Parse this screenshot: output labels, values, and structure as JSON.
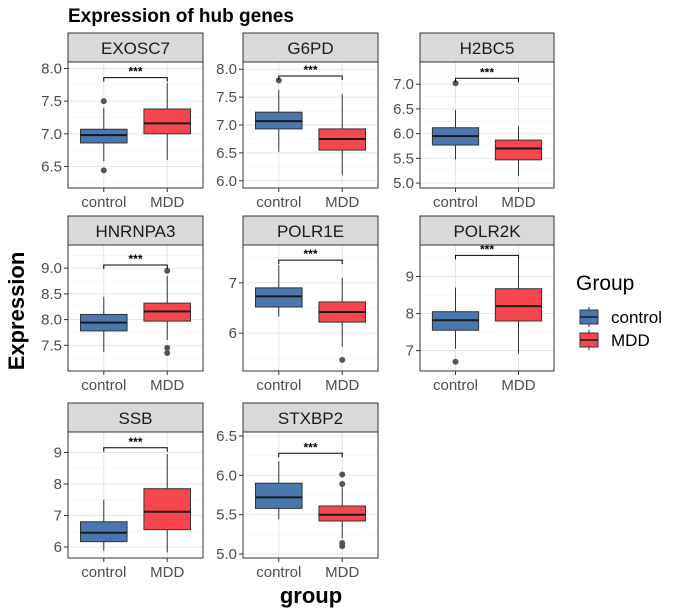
{
  "chart_data": {
    "type": "boxplot",
    "title": "Expression of hub genes",
    "xlabel": "group",
    "ylabel": "Expression",
    "categories": [
      "control",
      "MDD"
    ],
    "legend": {
      "title": "Group",
      "position": "right",
      "entries": [
        {
          "name": "control",
          "color": "#4A78AE"
        },
        {
          "name": "MDD",
          "color": "#F5474D"
        }
      ]
    },
    "grid": true,
    "panels": [
      {
        "gene": "EXOSC7",
        "yticks": [
          6.5,
          7.0,
          7.5,
          8.0
        ],
        "ylim": [
          6.17,
          8.1
        ],
        "significance": "***",
        "sig_y": 7.86,
        "boxes": [
          {
            "group": "control",
            "lower_whisker": 6.58,
            "q1": 6.86,
            "median": 6.98,
            "q3": 7.07,
            "upper_whisker": 7.4,
            "outliers": [
              7.5,
              6.44
            ]
          },
          {
            "group": "MDD",
            "lower_whisker": 6.6,
            "q1": 7.0,
            "median": 7.16,
            "q3": 7.38,
            "upper_whisker": 7.78,
            "outliers": []
          }
        ]
      },
      {
        "gene": "G6PD",
        "yticks": [
          6.0,
          6.5,
          7.0,
          7.5,
          8.0
        ],
        "ylim": [
          5.87,
          8.13
        ],
        "significance": "***",
        "sig_y": 7.88,
        "boxes": [
          {
            "group": "control",
            "lower_whisker": 6.52,
            "q1": 6.93,
            "median": 7.07,
            "q3": 7.23,
            "upper_whisker": 7.63,
            "outliers": [
              7.8
            ]
          },
          {
            "group": "MDD",
            "lower_whisker": 6.1,
            "q1": 6.55,
            "median": 6.75,
            "q3": 6.93,
            "upper_whisker": 7.55,
            "outliers": []
          }
        ]
      },
      {
        "gene": "H2BC5",
        "yticks": [
          5.0,
          5.5,
          6.0,
          6.5,
          7.0
        ],
        "ylim": [
          4.9,
          7.45
        ],
        "significance": "***",
        "sig_y": 7.12,
        "boxes": [
          {
            "group": "control",
            "lower_whisker": 5.48,
            "q1": 5.77,
            "median": 5.95,
            "q3": 6.12,
            "upper_whisker": 6.48,
            "outliers": [
              7.02
            ]
          },
          {
            "group": "MDD",
            "lower_whisker": 5.15,
            "q1": 5.47,
            "median": 5.7,
            "q3": 5.87,
            "upper_whisker": 6.15,
            "outliers": []
          }
        ]
      },
      {
        "gene": "HNRNPA3",
        "yticks": [
          7.5,
          8.0,
          8.5,
          9.0
        ],
        "ylim": [
          7.0,
          9.45
        ],
        "significance": "***",
        "sig_y": 9.06,
        "boxes": [
          {
            "group": "control",
            "lower_whisker": 7.37,
            "q1": 7.78,
            "median": 7.94,
            "q3": 8.1,
            "upper_whisker": 8.44,
            "outliers": []
          },
          {
            "group": "MDD",
            "lower_whisker": 7.6,
            "q1": 7.97,
            "median": 8.16,
            "q3": 8.32,
            "upper_whisker": 8.85,
            "outliers": [
              8.95,
              7.45,
              7.35
            ]
          }
        ]
      },
      {
        "gene": "POLR1E",
        "yticks": [
          6,
          7
        ],
        "ylim": [
          5.25,
          7.75
        ],
        "significance": "***",
        "sig_y": 7.45,
        "boxes": [
          {
            "group": "control",
            "lower_whisker": 6.33,
            "q1": 6.52,
            "median": 6.73,
            "q3": 6.9,
            "upper_whisker": 7.35,
            "outliers": []
          },
          {
            "group": "MDD",
            "lower_whisker": 5.73,
            "q1": 6.22,
            "median": 6.42,
            "q3": 6.62,
            "upper_whisker": 7.1,
            "outliers": [
              5.47
            ]
          }
        ]
      },
      {
        "gene": "POLR2K",
        "yticks": [
          7,
          8,
          9
        ],
        "ylim": [
          6.45,
          9.85
        ],
        "significance": "***",
        "sig_y": 9.57,
        "boxes": [
          {
            "group": "control",
            "lower_whisker": 7.05,
            "q1": 7.55,
            "median": 7.82,
            "q3": 8.05,
            "upper_whisker": 8.7,
            "outliers": [
              6.7
            ]
          },
          {
            "group": "MDD",
            "lower_whisker": 6.92,
            "q1": 7.8,
            "median": 8.2,
            "q3": 8.67,
            "upper_whisker": 9.45,
            "outliers": []
          }
        ]
      },
      {
        "gene": "SSB",
        "yticks": [
          6,
          7,
          8,
          9
        ],
        "ylim": [
          5.65,
          9.65
        ],
        "significance": "***",
        "sig_y": 9.15,
        "boxes": [
          {
            "group": "control",
            "lower_whisker": 5.88,
            "q1": 6.17,
            "median": 6.45,
            "q3": 6.8,
            "upper_whisker": 7.5,
            "outliers": []
          },
          {
            "group": "MDD",
            "lower_whisker": 5.83,
            "q1": 6.55,
            "median": 7.12,
            "q3": 7.85,
            "upper_whisker": 8.95,
            "outliers": []
          }
        ]
      },
      {
        "gene": "STXBP2",
        "yticks": [
          5.0,
          5.5,
          6.0,
          6.5
        ],
        "ylim": [
          4.95,
          6.55
        ],
        "significance": "***",
        "sig_y": 6.28,
        "boxes": [
          {
            "group": "control",
            "lower_whisker": 5.44,
            "q1": 5.58,
            "median": 5.72,
            "q3": 5.9,
            "upper_whisker": 6.18,
            "outliers": []
          },
          {
            "group": "MDD",
            "lower_whisker": 5.2,
            "q1": 5.42,
            "median": 5.5,
            "q3": 5.61,
            "upper_whisker": 5.85,
            "outliers": [
              6.01,
              5.89,
              5.14,
              5.1
            ]
          }
        ]
      }
    ]
  }
}
